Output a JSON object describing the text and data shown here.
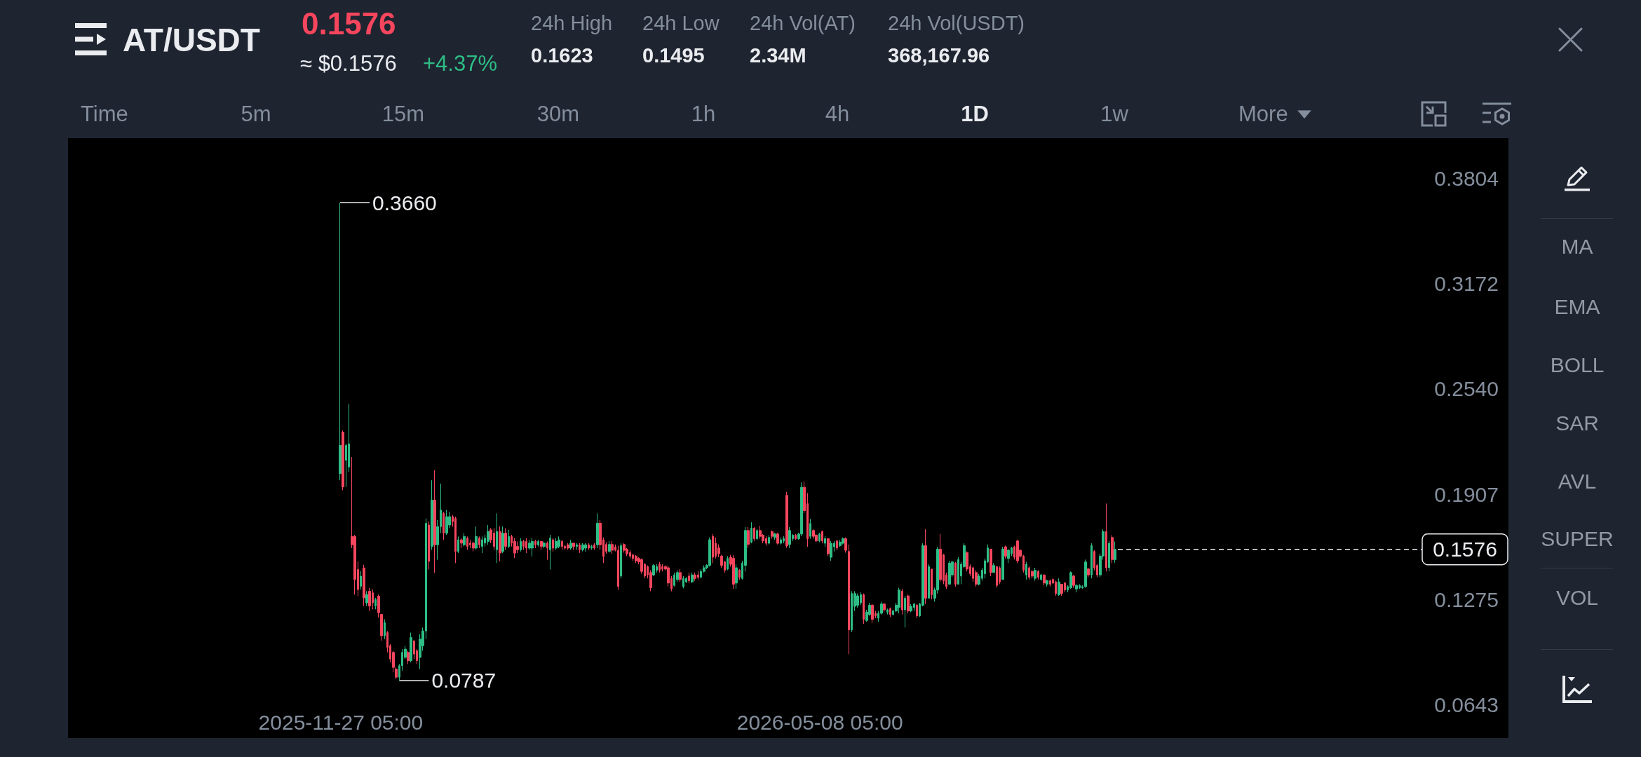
{
  "chart_data": {
    "type": "candlestick",
    "title": "AT/USDT",
    "x": [
      "2025-11-27",
      "2025-11-28",
      "2025-11-29",
      "2025-11-30",
      "2025-12-01",
      "2025-12-02",
      "2025-12-03",
      "2025-12-04",
      "2025-12-05",
      "2025-12-06",
      "2025-12-07",
      "2025-12-08",
      "2025-12-09",
      "2025-12-10",
      "2025-12-11",
      "2025-12-12",
      "2025-12-13",
      "2025-12-14",
      "2025-12-15",
      "2025-12-16",
      "2025-12-17",
      "2025-12-18",
      "2025-12-19",
      "2025-12-20",
      "2025-12-21",
      "2025-12-22",
      "2025-12-23",
      "2025-12-24",
      "2025-12-25",
      "2025-12-26",
      "2025-12-27",
      "2025-12-28",
      "2025-12-29",
      "2025-12-30",
      "2025-12-31",
      "2026-01-01",
      "2026-01-02",
      "2026-01-03",
      "2026-01-04",
      "2026-01-05",
      "2026-01-06",
      "2026-01-07",
      "2026-01-08",
      "2026-01-09",
      "2026-01-10",
      "2026-01-11",
      "2026-01-12",
      "2026-01-13",
      "2026-01-14",
      "2026-01-15",
      "2026-01-16",
      "2026-01-17",
      "2026-01-18",
      "2026-01-19",
      "2026-01-20",
      "2026-01-21",
      "2026-01-22",
      "2026-01-23",
      "2026-01-24",
      "2026-01-25",
      "2026-01-26",
      "2026-01-27",
      "2026-01-28",
      "2026-01-29",
      "2026-01-30",
      "2026-01-31",
      "2026-02-01",
      "2026-02-02",
      "2026-02-03",
      "2026-02-04",
      "2026-02-05",
      "2026-02-06",
      "2026-02-07",
      "2026-02-08",
      "2026-02-09",
      "2026-02-10",
      "2026-02-11",
      "2026-02-12",
      "2026-02-13",
      "2026-02-14",
      "2026-02-15",
      "2026-02-16",
      "2026-02-17",
      "2026-02-18",
      "2026-02-19",
      "2026-02-20",
      "2026-02-21",
      "2026-02-22",
      "2026-02-23",
      "2026-02-24",
      "2026-02-25",
      "2026-02-26",
      "2026-02-27",
      "2026-02-28",
      "2026-03-01",
      "2026-03-02",
      "2026-03-03",
      "2026-03-04",
      "2026-03-05",
      "2026-03-06",
      "2026-03-07",
      "2026-03-08",
      "2026-03-09",
      "2026-03-10",
      "2026-03-11",
      "2026-03-12",
      "2026-03-13",
      "2026-03-14",
      "2026-03-15",
      "2026-03-16",
      "2026-03-17",
      "2026-03-18",
      "2026-03-19",
      "2026-03-20",
      "2026-03-21",
      "2026-03-22",
      "2026-03-23",
      "2026-03-24",
      "2026-03-25",
      "2026-03-26",
      "2026-03-27",
      "2026-03-28",
      "2026-03-29",
      "2026-03-30",
      "2026-03-31",
      "2026-04-01",
      "2026-04-02",
      "2026-04-03",
      "2026-04-04",
      "2026-04-05",
      "2026-04-06",
      "2026-04-07",
      "2026-04-08",
      "2026-04-09",
      "2026-04-10",
      "2026-04-11",
      "2026-04-12",
      "2026-04-13",
      "2026-04-14",
      "2026-04-15",
      "2026-04-16",
      "2026-04-17",
      "2026-04-18",
      "2026-04-19",
      "2026-04-20",
      "2026-04-21",
      "2026-04-22",
      "2026-04-23",
      "2026-04-24",
      "2026-04-25",
      "2026-04-26",
      "2026-04-27",
      "2026-04-28",
      "2026-04-29",
      "2026-04-30",
      "2026-05-01",
      "2026-05-02",
      "2026-05-03",
      "2026-05-04",
      "2026-05-05",
      "2026-05-06",
      "2026-05-07",
      "2026-05-08",
      "2026-05-09",
      "2026-05-10",
      "2026-05-11",
      "2026-05-12",
      "2026-05-13",
      "2026-05-14",
      "2026-05-15",
      "2026-05-16",
      "2026-05-17",
      "2026-05-18",
      "2026-05-19",
      "2026-05-20",
      "2026-05-21",
      "2026-05-22",
      "2026-05-23",
      "2026-05-24",
      "2026-05-25",
      "2026-05-26",
      "2026-05-27",
      "2026-05-28",
      "2026-05-29",
      "2026-05-30",
      "2026-05-31",
      "2026-06-01",
      "2026-06-02",
      "2026-06-03",
      "2026-06-04",
      "2026-06-05",
      "2026-06-06",
      "2026-06-07",
      "2026-06-08",
      "2026-06-09",
      "2026-06-10",
      "2026-06-11",
      "2026-06-12",
      "2026-06-13",
      "2026-06-14",
      "2026-06-15",
      "2026-06-16",
      "2026-06-17",
      "2026-06-18",
      "2026-06-19",
      "2026-06-20",
      "2026-06-21",
      "2026-06-22",
      "2026-06-23",
      "2026-06-24",
      "2026-06-25",
      "2026-06-26",
      "2026-06-27",
      "2026-06-28",
      "2026-06-29",
      "2026-06-30",
      "2026-07-01",
      "2026-07-02",
      "2026-07-03",
      "2026-07-04",
      "2026-07-05",
      "2026-07-06",
      "2026-07-07",
      "2026-07-08",
      "2026-07-09",
      "2026-07-10",
      "2026-07-11",
      "2026-07-12",
      "2026-07-13",
      "2026-07-14",
      "2026-07-15",
      "2026-07-16",
      "2026-07-17",
      "2026-07-18",
      "2026-07-19",
      "2026-07-20",
      "2026-07-21",
      "2026-07-22",
      "2026-07-23",
      "2026-07-24",
      "2026-07-25",
      "2026-07-26",
      "2026-07-27",
      "2026-07-28",
      "2026-07-29",
      "2026-07-30",
      "2026-07-31",
      "2026-08-01",
      "2026-08-02",
      "2026-08-03",
      "2026-08-04",
      "2026-08-05",
      "2026-08-06",
      "2026-08-07",
      "2026-08-08",
      "2026-08-09",
      "2026-08-10",
      "2026-08-11",
      "2026-08-12",
      "2026-08-13",
      "2026-08-14",
      "2026-08-15",
      "2026-08-16"
    ],
    "ohlc": [
      [
        0.2031,
        0.366,
        0.1991,
        0.22
      ],
      [
        0.228,
        0.229,
        0.1931,
        0.1951
      ],
      [
        0.2111,
        0.221,
        0.1951,
        0.22
      ],
      [
        0.2071,
        0.2449,
        0.2041,
        0.221
      ],
      [
        0.1653,
        0.213,
        0.1583,
        0.1603
      ],
      [
        0.1653,
        0.1663,
        0.1304,
        0.1394
      ],
      [
        0.1454,
        0.1503,
        0.1294,
        0.1334
      ],
      [
        0.1354,
        0.1444,
        0.1334,
        0.1414
      ],
      [
        0.1464,
        0.1483,
        0.1235,
        0.1284
      ],
      [
        0.1254,
        0.1324,
        0.1235,
        0.1304
      ],
      [
        0.1324,
        0.1344,
        0.1205,
        0.1235
      ],
      [
        0.1314,
        0.1334,
        0.1215,
        0.1254
      ],
      [
        0.1235,
        0.1284,
        0.1215,
        0.1274
      ],
      [
        0.1294,
        0.1304,
        0.1165,
        0.1195
      ],
      [
        0.1185,
        0.1185,
        0.1026,
        0.1056
      ],
      [
        0.1056,
        0.1155,
        0.1036,
        0.1135
      ],
      [
        0.1075,
        0.1085,
        0.0956,
        0.0986
      ],
      [
        0.0996,
        0.1006,
        0.0896,
        0.0916
      ],
      [
        0.0956,
        0.0966,
        0.0836,
        0.0866
      ],
      [
        0.0856,
        0.0866,
        0.0797,
        0.0807
      ],
      [
        0.0807,
        0.0886,
        0.0787,
        0.0876
      ],
      [
        0.0876,
        0.0976,
        0.0846,
        0.0956
      ],
      [
        0.0926,
        0.0996,
        0.0916,
        0.0976
      ],
      [
        0.0956,
        0.0966,
        0.0886,
        0.0906
      ],
      [
        0.0906,
        0.1075,
        0.0896,
        0.1046
      ],
      [
        0.1026,
        0.1026,
        0.0916,
        0.0946
      ],
      [
        0.0966,
        0.0976,
        0.0886,
        0.0906
      ],
      [
        0.0926,
        0.1065,
        0.0856,
        0.1036
      ],
      [
        0.0996,
        0.1105,
        0.0966,
        0.1085
      ],
      [
        0.1085,
        0.1762,
        0.1036,
        0.1732
      ],
      [
        0.1722,
        0.1742,
        0.1454,
        0.1503
      ],
      [
        0.1593,
        0.1991,
        0.1573,
        0.1872
      ],
      [
        0.1872,
        0.2051,
        0.1434,
        0.1603
      ],
      [
        0.1603,
        0.1752,
        0.1513,
        0.1712
      ],
      [
        0.1712,
        0.1971,
        0.1673,
        0.1812
      ],
      [
        0.1792,
        0.1802,
        0.1633,
        0.1673
      ],
      [
        0.1673,
        0.1812,
        0.1663,
        0.1772
      ],
      [
        0.1722,
        0.1802,
        0.1703,
        0.1772
      ],
      [
        0.1772,
        0.1782,
        0.1712,
        0.1742
      ],
      [
        0.1762,
        0.1772,
        0.1493,
        0.1563
      ],
      [
        0.1563,
        0.1653,
        0.1553,
        0.1633
      ],
      [
        0.1633,
        0.1643,
        0.1583,
        0.1613
      ],
      [
        0.1603,
        0.1673,
        0.1593,
        0.1653
      ],
      [
        0.1643,
        0.1653,
        0.1573,
        0.1593
      ],
      [
        0.1613,
        0.1633,
        0.1583,
        0.1603
      ],
      [
        0.1613,
        0.1623,
        0.1563,
        0.1583
      ],
      [
        0.1583,
        0.1713,
        0.1573,
        0.1653
      ],
      [
        0.1643,
        0.1653,
        0.1583,
        0.1603
      ],
      [
        0.1593,
        0.1653,
        0.1553,
        0.1633
      ],
      [
        0.1613,
        0.1663,
        0.1593,
        0.1643
      ],
      [
        0.1623,
        0.1722,
        0.1603,
        0.1683
      ],
      [
        0.1693,
        0.1703,
        0.1613,
        0.1633
      ],
      [
        0.1673,
        0.1703,
        0.1573,
        0.1593
      ],
      [
        0.1573,
        0.1792,
        0.1493,
        0.1683
      ],
      [
        0.1683,
        0.1713,
        0.1503,
        0.1553
      ],
      [
        0.1563,
        0.1713,
        0.1553,
        0.1673
      ],
      [
        0.1673,
        0.1703,
        0.1573,
        0.1593
      ],
      [
        0.1593,
        0.1693,
        0.1583,
        0.1653
      ],
      [
        0.1653,
        0.1663,
        0.1593,
        0.1613
      ],
      [
        0.1623,
        0.1643,
        0.1523,
        0.1553
      ],
      [
        0.1593,
        0.1623,
        0.1553,
        0.1573
      ],
      [
        0.1573,
        0.1643,
        0.1563,
        0.1623
      ],
      [
        0.1623,
        0.1633,
        0.1573,
        0.1593
      ],
      [
        0.1623,
        0.1643,
        0.1553,
        0.1583
      ],
      [
        0.1583,
        0.1633,
        0.1573,
        0.1613
      ],
      [
        0.1583,
        0.1643,
        0.1533,
        0.1623
      ],
      [
        0.1623,
        0.1633,
        0.1583,
        0.1603
      ],
      [
        0.1603,
        0.1633,
        0.1593,
        0.1623
      ],
      [
        0.1623,
        0.1623,
        0.1573,
        0.1593
      ],
      [
        0.1593,
        0.1623,
        0.1583,
        0.1613
      ],
      [
        0.1613,
        0.1623,
        0.1513,
        0.1583
      ],
      [
        0.1573,
        0.1663,
        0.1454,
        0.1643
      ],
      [
        0.1633,
        0.1643,
        0.1563,
        0.1583
      ],
      [
        0.1583,
        0.1643,
        0.1573,
        0.1623
      ],
      [
        0.1593,
        0.1653,
        0.1583,
        0.1633
      ],
      [
        0.1623,
        0.1633,
        0.1573,
        0.1593
      ],
      [
        0.1593,
        0.1603,
        0.1573,
        0.1583
      ],
      [
        0.1603,
        0.1613,
        0.1573,
        0.1583
      ],
      [
        0.1583,
        0.1633,
        0.1573,
        0.1613
      ],
      [
        0.1613,
        0.1613,
        0.1573,
        0.1593
      ],
      [
        0.1593,
        0.1613,
        0.1573,
        0.1603
      ],
      [
        0.1603,
        0.1613,
        0.1553,
        0.1573
      ],
      [
        0.1573,
        0.1613,
        0.1563,
        0.1603
      ],
      [
        0.1583,
        0.1613,
        0.1563,
        0.1603
      ],
      [
        0.1603,
        0.1613,
        0.1573,
        0.1583
      ],
      [
        0.1583,
        0.1603,
        0.1573,
        0.1593
      ],
      [
        0.1603,
        0.1613,
        0.1573,
        0.1583
      ],
      [
        0.1603,
        0.1792,
        0.1583,
        0.1733
      ],
      [
        0.1733,
        0.1752,
        0.1573,
        0.1603
      ],
      [
        0.1633,
        0.1647,
        0.1493,
        0.1533
      ],
      [
        0.1605,
        0.1619,
        0.1549,
        0.1563
      ],
      [
        0.1563,
        0.1626,
        0.1556,
        0.1605
      ],
      [
        0.1605,
        0.1626,
        0.1549,
        0.157
      ],
      [
        0.1591,
        0.1605,
        0.1563,
        0.157
      ],
      [
        0.157,
        0.1598,
        0.1331,
        0.1352
      ],
      [
        0.1415,
        0.1612,
        0.1401,
        0.1598
      ],
      [
        0.1605,
        0.1612,
        0.1556,
        0.157
      ],
      [
        0.1577,
        0.1584,
        0.1535,
        0.1549
      ],
      [
        0.1556,
        0.157,
        0.1521,
        0.1535
      ],
      [
        0.1542,
        0.1549,
        0.1507,
        0.1521
      ],
      [
        0.1535,
        0.1542,
        0.1493,
        0.1507
      ],
      [
        0.1521,
        0.1528,
        0.1486,
        0.15
      ],
      [
        0.1514,
        0.1521,
        0.1429,
        0.1443
      ],
      [
        0.1486,
        0.1493,
        0.1401,
        0.1415
      ],
      [
        0.1472,
        0.1479,
        0.1401,
        0.1422
      ],
      [
        0.1436,
        0.145,
        0.1324,
        0.1345
      ],
      [
        0.1422,
        0.1486,
        0.1415,
        0.1479
      ],
      [
        0.145,
        0.1486,
        0.1436,
        0.1472
      ],
      [
        0.1486,
        0.15,
        0.1436,
        0.145
      ],
      [
        0.1472,
        0.1486,
        0.1443,
        0.1457
      ],
      [
        0.1472,
        0.1479,
        0.145,
        0.1457
      ],
      [
        0.1465,
        0.1479,
        0.1352,
        0.1373
      ],
      [
        0.1401,
        0.1415,
        0.1324,
        0.1338
      ],
      [
        0.1359,
        0.1436,
        0.1352,
        0.1422
      ],
      [
        0.1394,
        0.145,
        0.138,
        0.1436
      ],
      [
        0.1436,
        0.1457,
        0.138,
        0.1394
      ],
      [
        0.1352,
        0.1415,
        0.1341,
        0.1401
      ],
      [
        0.138,
        0.1408,
        0.1373,
        0.1401
      ],
      [
        0.1415,
        0.1436,
        0.1373,
        0.1387
      ],
      [
        0.138,
        0.1436,
        0.1373,
        0.1422
      ],
      [
        0.1422,
        0.1436,
        0.1387,
        0.1401
      ],
      [
        0.1422,
        0.1443,
        0.1394,
        0.1408
      ],
      [
        0.1408,
        0.1457,
        0.1401,
        0.1443
      ],
      [
        0.1443,
        0.1479,
        0.1436,
        0.1465
      ],
      [
        0.1465,
        0.1486,
        0.1457,
        0.1479
      ],
      [
        0.1479,
        0.1647,
        0.1472,
        0.1633
      ],
      [
        0.1654,
        0.1668,
        0.1493,
        0.1528
      ],
      [
        0.1612,
        0.1647,
        0.1521,
        0.1535
      ],
      [
        0.1584,
        0.1605,
        0.1528,
        0.1549
      ],
      [
        0.1535,
        0.1542,
        0.1465,
        0.1479
      ],
      [
        0.15,
        0.1507,
        0.1436,
        0.145
      ],
      [
        0.1457,
        0.1535,
        0.145,
        0.1521
      ],
      [
        0.1528,
        0.1542,
        0.1472,
        0.1486
      ],
      [
        0.1521,
        0.1542,
        0.1338,
        0.1366
      ],
      [
        0.1373,
        0.1486,
        0.1338,
        0.1465
      ],
      [
        0.145,
        0.1457,
        0.1394,
        0.1408
      ],
      [
        0.1401,
        0.1507,
        0.1394,
        0.1493
      ],
      [
        0.1479,
        0.171,
        0.1443,
        0.1689
      ],
      [
        0.1689,
        0.171,
        0.1584,
        0.1605
      ],
      [
        0.1619,
        0.1738,
        0.1612,
        0.1703
      ],
      [
        0.1703,
        0.171,
        0.1626,
        0.164
      ],
      [
        0.164,
        0.1696,
        0.1633,
        0.1689
      ],
      [
        0.1689,
        0.1717,
        0.164,
        0.1654
      ],
      [
        0.1661,
        0.1668,
        0.1612,
        0.1626
      ],
      [
        0.164,
        0.1654,
        0.1598,
        0.1612
      ],
      [
        0.1612,
        0.1661,
        0.1605,
        0.1647
      ],
      [
        0.1682,
        0.1689,
        0.164,
        0.1654
      ],
      [
        0.1647,
        0.1675,
        0.1633,
        0.1668
      ],
      [
        0.1668,
        0.1675,
        0.1605,
        0.1612
      ],
      [
        0.1612,
        0.1647,
        0.1605,
        0.1633
      ],
      [
        0.1626,
        0.1654,
        0.1612,
        0.164
      ],
      [
        0.19,
        0.1921,
        0.1584,
        0.1598
      ],
      [
        0.1605,
        0.171,
        0.1584,
        0.1689
      ],
      [
        0.164,
        0.1668,
        0.1626,
        0.1661
      ],
      [
        0.1661,
        0.1668,
        0.1633,
        0.164
      ],
      [
        0.164,
        0.1675,
        0.1633,
        0.1668
      ],
      [
        0.1668,
        0.1977,
        0.1654,
        0.1949
      ],
      [
        0.1949,
        0.1984,
        0.1794,
        0.1808
      ],
      [
        0.185,
        0.1914,
        0.1591,
        0.164
      ],
      [
        0.1654,
        0.1759,
        0.164,
        0.1731
      ],
      [
        0.1689,
        0.1696,
        0.164,
        0.1654
      ],
      [
        0.1661,
        0.1668,
        0.1619,
        0.1626
      ],
      [
        0.1626,
        0.1675,
        0.1619,
        0.1668
      ],
      [
        0.1682,
        0.1689,
        0.1612,
        0.1626
      ],
      [
        0.1612,
        0.1654,
        0.1591,
        0.164
      ],
      [
        0.164,
        0.164,
        0.1535,
        0.1549
      ],
      [
        0.1528,
        0.1626,
        0.1507,
        0.1612
      ],
      [
        0.1591,
        0.1626,
        0.1563,
        0.1612
      ],
      [
        0.1626,
        0.1633,
        0.157,
        0.1584
      ],
      [
        0.1598,
        0.1633,
        0.1591,
        0.1619
      ],
      [
        0.1612,
        0.1647,
        0.1605,
        0.164
      ],
      [
        0.164,
        0.1647,
        0.1556,
        0.157
      ],
      [
        0.1563,
        0.1605,
        0.0945,
        0.1092
      ],
      [
        0.1092,
        0.1324,
        0.1078,
        0.131
      ],
      [
        0.1233,
        0.1324,
        0.1205,
        0.131
      ],
      [
        0.124,
        0.131,
        0.1226,
        0.1296
      ],
      [
        0.1254,
        0.1317,
        0.124,
        0.1303
      ],
      [
        0.1303,
        0.131,
        0.1127,
        0.1155
      ],
      [
        0.1148,
        0.1212,
        0.1141,
        0.1198
      ],
      [
        0.1184,
        0.1254,
        0.1176,
        0.124
      ],
      [
        0.124,
        0.1247,
        0.1134,
        0.1155
      ],
      [
        0.1191,
        0.1205,
        0.1162,
        0.1176
      ],
      [
        0.1162,
        0.1205,
        0.1141,
        0.1191
      ],
      [
        0.1191,
        0.1261,
        0.1184,
        0.1247
      ],
      [
        0.1247,
        0.1254,
        0.1198,
        0.1212
      ],
      [
        0.1198,
        0.1219,
        0.1184,
        0.1212
      ],
      [
        0.1219,
        0.1226,
        0.1169,
        0.1184
      ],
      [
        0.1184,
        0.1212,
        0.1177,
        0.1205
      ],
      [
        0.1205,
        0.1254,
        0.1198,
        0.124
      ],
      [
        0.1226,
        0.1345,
        0.1191,
        0.1331
      ],
      [
        0.1324,
        0.1338,
        0.1184,
        0.1212
      ],
      [
        0.1212,
        0.1296,
        0.1106,
        0.1282
      ],
      [
        0.1296,
        0.1303,
        0.1191,
        0.1205
      ],
      [
        0.1205,
        0.1247,
        0.1198,
        0.1233
      ],
      [
        0.1226,
        0.1254,
        0.1205,
        0.1247
      ],
      [
        0.124,
        0.1247,
        0.1162,
        0.1176
      ],
      [
        0.1176,
        0.1254,
        0.1169,
        0.1247
      ],
      [
        0.124,
        0.1612,
        0.1233,
        0.1598
      ],
      [
        0.1598,
        0.1696,
        0.1247,
        0.1282
      ],
      [
        0.1282,
        0.1486,
        0.1282,
        0.1472
      ],
      [
        0.1457,
        0.1457,
        0.1275,
        0.1303
      ],
      [
        0.1282,
        0.1345,
        0.1261,
        0.1331
      ],
      [
        0.1331,
        0.1591,
        0.131,
        0.1577
      ],
      [
        0.1577,
        0.1668,
        0.138,
        0.1394
      ],
      [
        0.1542,
        0.1549,
        0.1366,
        0.1387
      ],
      [
        0.1422,
        0.1436,
        0.1338,
        0.1352
      ],
      [
        0.1366,
        0.1507,
        0.1366,
        0.1493
      ],
      [
        0.1422,
        0.1507,
        0.1408,
        0.15
      ],
      [
        0.1493,
        0.15,
        0.1352,
        0.1366
      ],
      [
        0.1366,
        0.1528,
        0.1366,
        0.1514
      ],
      [
        0.1415,
        0.15,
        0.1366,
        0.1486
      ],
      [
        0.1472,
        0.1612,
        0.1465,
        0.1598
      ],
      [
        0.1556,
        0.1563,
        0.1443,
        0.1457
      ],
      [
        0.1472,
        0.1486,
        0.1415,
        0.1429
      ],
      [
        0.1465,
        0.1472,
        0.138,
        0.1401
      ],
      [
        0.1436,
        0.145,
        0.1352,
        0.1366
      ],
      [
        0.1366,
        0.1429,
        0.1359,
        0.1415
      ],
      [
        0.1401,
        0.1465,
        0.1387,
        0.145
      ],
      [
        0.1429,
        0.1521,
        0.1401,
        0.1507
      ],
      [
        0.15,
        0.1605,
        0.1493,
        0.1584
      ],
      [
        0.1577,
        0.1577,
        0.1415,
        0.1436
      ],
      [
        0.1436,
        0.1493,
        0.1436,
        0.1479
      ],
      [
        0.1472,
        0.1472,
        0.1345,
        0.1359
      ],
      [
        0.1465,
        0.1472,
        0.1366,
        0.138
      ],
      [
        0.1394,
        0.1591,
        0.1394,
        0.1577
      ],
      [
        0.1591,
        0.1598,
        0.1521,
        0.1535
      ],
      [
        0.1521,
        0.1577,
        0.1493,
        0.157
      ],
      [
        0.1549,
        0.1591,
        0.1535,
        0.1584
      ],
      [
        0.1591,
        0.1598,
        0.1514,
        0.1528
      ],
      [
        0.1626,
        0.1633,
        0.1493,
        0.1507
      ],
      [
        0.157,
        0.1577,
        0.1521,
        0.1535
      ],
      [
        0.1535,
        0.1542,
        0.1436,
        0.145
      ],
      [
        0.1422,
        0.15,
        0.1394,
        0.1486
      ],
      [
        0.1465,
        0.1472,
        0.1394,
        0.1408
      ],
      [
        0.1443,
        0.145,
        0.1401,
        0.1415
      ],
      [
        0.1401,
        0.1465,
        0.1387,
        0.145
      ],
      [
        0.1443,
        0.145,
        0.1394,
        0.1408
      ],
      [
        0.1394,
        0.1429,
        0.1387,
        0.1422
      ],
      [
        0.1422,
        0.1422,
        0.1359,
        0.1373
      ],
      [
        0.1366,
        0.1394,
        0.1352,
        0.1387
      ],
      [
        0.1387,
        0.1394,
        0.1352,
        0.1366
      ],
      [
        0.1394,
        0.1401,
        0.1366,
        0.1373
      ],
      [
        0.138,
        0.1387,
        0.1296,
        0.131
      ],
      [
        0.1303,
        0.1401,
        0.1296,
        0.138
      ],
      [
        0.1366,
        0.1366,
        0.1296,
        0.131
      ],
      [
        0.1373,
        0.138,
        0.1317,
        0.1331
      ],
      [
        0.1331,
        0.1359,
        0.1317,
        0.1352
      ],
      [
        0.1345,
        0.1443,
        0.1338,
        0.1436
      ],
      [
        0.1415,
        0.1422,
        0.1345,
        0.1359
      ],
      [
        0.1338,
        0.1366,
        0.1317,
        0.1359
      ],
      [
        0.1345,
        0.1366,
        0.1338,
        0.1359
      ],
      [
        0.1345,
        0.1359,
        0.1338,
        0.1352
      ],
      [
        0.1352,
        0.1514,
        0.1345,
        0.15
      ],
      [
        0.1458,
        0.1465,
        0.1408,
        0.1422
      ],
      [
        0.1422,
        0.1612,
        0.1401,
        0.1598
      ],
      [
        0.1563,
        0.157,
        0.145,
        0.1465
      ],
      [
        0.1479,
        0.1486,
        0.1408,
        0.1422
      ],
      [
        0.1422,
        0.1549,
        0.1408,
        0.1535
      ],
      [
        0.1535,
        0.1696,
        0.1514,
        0.1682
      ],
      [
        0.1682,
        0.1851,
        0.1443,
        0.1465
      ],
      [
        0.1465,
        0.1626,
        0.1443,
        0.1612
      ],
      [
        0.1647,
        0.1661,
        0.1493,
        0.1514
      ],
      [
        0.1514,
        0.1623,
        0.1495,
        0.1576
      ]
    ],
    "xlim": [
      "2025-08-27",
      "2026-12-27"
    ],
    "xticks": [
      {
        "value": "2025-11-27T05:00",
        "label": "2025-11-27 05:00"
      },
      {
        "value": "2026-05-08T05:00",
        "label": "2026-05-08 05:00"
      }
    ],
    "ylim": [
      0.0441,
      0.4048
    ],
    "yticks": [
      0.0643,
      0.1275,
      0.1907,
      {
        "value": 0.254,
        "label": "0.2540"
      },
      0.3172,
      0.3804
    ],
    "ref_lines": [
      {
        "axis": "y",
        "value": 0.1576,
        "label": "0.1576",
        "line_style": "dashed"
      }
    ],
    "annotations": [
      {
        "text": "0.3660",
        "x": "2025-11-27",
        "y": 0.366
      },
      {
        "text": "0.0787",
        "x": "2025-12-17",
        "y": 0.0787
      },
      "0.1576",
      "≈ $0.1576",
      "+4.37%",
      "24h High",
      "0.1623",
      "24h Low",
      "0.1495",
      "24h Vol(AT)",
      "2.34M",
      "24h Vol(USDT)",
      "368,167.96",
      "Time",
      "5m",
      "15m",
      "30m",
      "1h",
      "4h",
      "1D",
      "1w",
      "More",
      "MA",
      "EMA",
      "BOLL",
      "SAR",
      "AVL",
      "SUPER",
      "VOL"
    ]
  }
}
